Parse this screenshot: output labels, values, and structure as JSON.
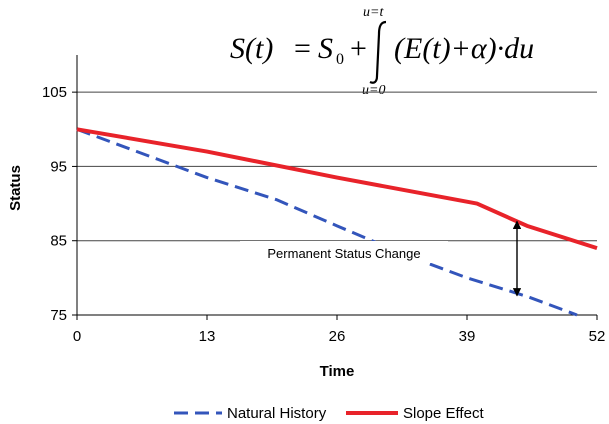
{
  "formula": {
    "lhs": "S(t)",
    "equals": "=",
    "s0": "S",
    "s0_sub": "0",
    "plus": "+",
    "upper_limit": "u=t",
    "lower_limit": "u=0",
    "integrand": "(E(t)+α)·du"
  },
  "chart_data": {
    "type": "line",
    "title": "",
    "xlabel": "Time",
    "ylabel": "Status",
    "xlim": [
      0,
      52
    ],
    "ylim": [
      75,
      110
    ],
    "xticks": [
      0,
      13,
      26,
      39,
      52
    ],
    "yticks": [
      75,
      85,
      95,
      105
    ],
    "grid": true,
    "legend_position": "bottom",
    "series": [
      {
        "name": "Natural History",
        "style": "dashed",
        "color": "#3355bb",
        "x": [
          0,
          8,
          13,
          20,
          26,
          33,
          39,
          45,
          50
        ],
        "y": [
          100,
          96,
          93.5,
          90.5,
          87,
          83,
          80,
          77.5,
          75
        ]
      },
      {
        "name": "Slope Effect",
        "style": "solid",
        "color": "#e8232a",
        "x": [
          0,
          13,
          26,
          40,
          45,
          52
        ],
        "y": [
          100,
          97,
          93.5,
          90,
          87,
          84
        ]
      }
    ],
    "annotation": {
      "text": "Permanent Status Change",
      "arrow_x": 44,
      "arrow_from": 77.6,
      "arrow_to": 87.6
    }
  }
}
